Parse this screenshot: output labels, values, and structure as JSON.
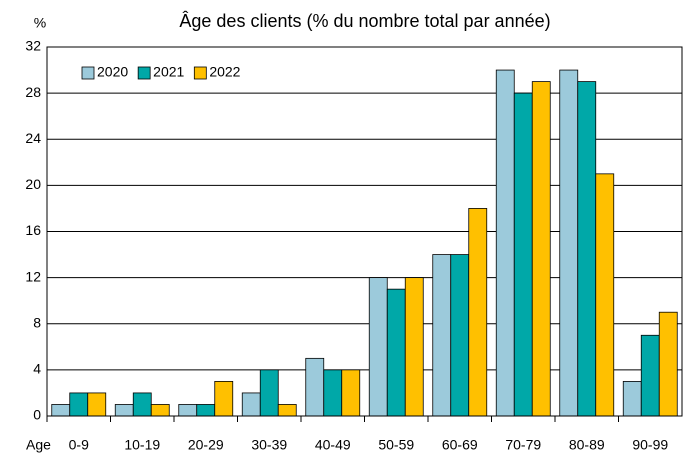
{
  "chart_data": {
    "type": "bar",
    "title": "Âge des clients (% du nombre total par année)",
    "y_label": "%",
    "x_label": "Age",
    "categories": [
      "0-9",
      "10-19",
      "20-29",
      "30-39",
      "40-49",
      "50-59",
      "60-69",
      "70-79",
      "80-89",
      "90-99"
    ],
    "series": [
      {
        "name": "2020",
        "color": "#9ccadb",
        "values": [
          1,
          1,
          1,
          2,
          5,
          12,
          14,
          30,
          30,
          3
        ]
      },
      {
        "name": "2021",
        "color": "#00a8a8",
        "values": [
          2,
          2,
          1,
          4,
          4,
          11,
          14,
          28,
          29,
          7
        ]
      },
      {
        "name": "2022",
        "color": "#ffc000",
        "values": [
          2,
          1,
          3,
          1,
          4,
          12,
          18,
          29,
          21,
          9
        ]
      }
    ],
    "ylim": [
      0,
      32
    ],
    "yticks": [
      0,
      4,
      8,
      12,
      16,
      20,
      24,
      28,
      32
    ],
    "grid": true,
    "legend": "top-left"
  }
}
